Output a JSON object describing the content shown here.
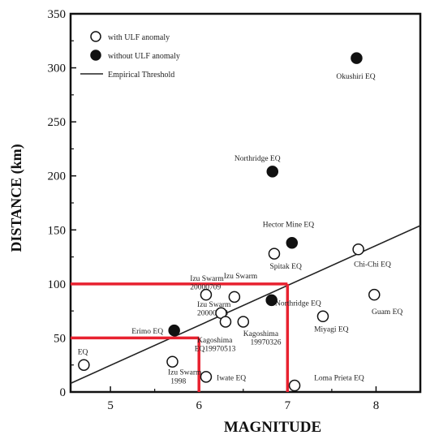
{
  "chart_data": {
    "type": "scatter",
    "xlabel": "MAGNITUDE",
    "ylabel": "DISTANCE (km)",
    "xlim": [
      4.55,
      8.5
    ],
    "ylim": [
      0,
      350
    ],
    "x_ticks": [
      "5",
      "6",
      "7",
      "8"
    ],
    "x_tick_values": [
      5,
      6,
      7,
      8
    ],
    "y_ticks": [
      "0",
      "50",
      "100",
      "150",
      "200",
      "250",
      "300",
      "350"
    ],
    "y_tick_values": [
      0,
      50,
      100,
      150,
      200,
      250,
      300,
      350
    ],
    "grid": false,
    "legend_position": "top-left",
    "legend": [
      {
        "label": "with ULF anomaly",
        "marker": "open-circle"
      },
      {
        "label": "without ULF anomaly",
        "marker": "filled-circle"
      },
      {
        "label": "Empirical Threshold",
        "marker": "line"
      }
    ],
    "series": [
      {
        "name": "with ULF anomaly",
        "marker": "open-circle",
        "points": [
          {
            "x": 4.7,
            "y": 25
          },
          {
            "x": 5.7,
            "y": 28
          },
          {
            "x": 6.08,
            "y": 14
          },
          {
            "x": 7.08,
            "y": 6
          },
          {
            "x": 6.08,
            "y": 90
          },
          {
            "x": 6.4,
            "y": 88
          },
          {
            "x": 6.25,
            "y": 73
          },
          {
            "x": 6.3,
            "y": 65
          },
          {
            "x": 6.5,
            "y": 65
          },
          {
            "x": 7.4,
            "y": 70
          },
          {
            "x": 6.85,
            "y": 128
          },
          {
            "x": 7.8,
            "y": 132
          },
          {
            "x": 7.98,
            "y": 90
          }
        ]
      },
      {
        "name": "without ULF anomaly",
        "marker": "filled-circle",
        "points": [
          {
            "x": 5.72,
            "y": 57
          },
          {
            "x": 6.82,
            "y": 85
          },
          {
            "x": 7.05,
            "y": 138
          },
          {
            "x": 6.83,
            "y": 204
          },
          {
            "x": 7.78,
            "y": 309
          }
        ]
      }
    ],
    "threshold_line": {
      "name": "Empirical Threshold",
      "x": [
        4.55,
        8.5
      ],
      "y": [
        8,
        154
      ]
    },
    "red_guides": [
      {
        "x": 6.0,
        "y": 50
      },
      {
        "x": 7.0,
        "y": 100
      }
    ],
    "annotations": [
      {
        "text": "Okushiri EQ",
        "x": 7.55,
        "y": 290
      },
      {
        "text": "Northridge EQ",
        "x": 6.4,
        "y": 214
      },
      {
        "text": "Hector Mine EQ",
        "x": 6.72,
        "y": 153
      },
      {
        "text": "Spitak EQ",
        "x": 6.8,
        "y": 114
      },
      {
        "text": "Chi-Chi EQ",
        "x": 7.75,
        "y": 116
      },
      {
        "text": "Izu Swarm",
        "x": 5.9,
        "y": 103
      },
      {
        "text": "20000709",
        "x": 5.9,
        "y": 95
      },
      {
        "text": "Izu Swarm",
        "x": 6.28,
        "y": 105
      },
      {
        "text": "Izu Swarm",
        "x": 5.98,
        "y": 79
      },
      {
        "text": "20000713",
        "x": 5.98,
        "y": 71
      },
      {
        "text": "Northridge EQ",
        "x": 6.86,
        "y": 80
      },
      {
        "text": "Guam EQ",
        "x": 7.95,
        "y": 72
      },
      {
        "text": "Miyagi EQ",
        "x": 7.3,
        "y": 56
      },
      {
        "text": "Kagoshima",
        "x": 6.5,
        "y": 52
      },
      {
        "text": "19970326",
        "x": 6.58,
        "y": 44
      },
      {
        "text": "Erimo EQ",
        "x": 5.24,
        "y": 54
      },
      {
        "text": "Kagoshima",
        "x": 5.98,
        "y": 46
      },
      {
        "text": "EQ19970513",
        "x": 5.95,
        "y": 38
      },
      {
        "text": "EQ",
        "x": 4.63,
        "y": 35
      },
      {
        "text": "Izu Swarm",
        "x": 5.65,
        "y": 16
      },
      {
        "text": "1998",
        "x": 5.68,
        "y": 8
      },
      {
        "text": "Iwate EQ",
        "x": 6.2,
        "y": 11
      },
      {
        "text": "Loma Prieta EQ",
        "x": 7.3,
        "y": 11
      }
    ]
  }
}
